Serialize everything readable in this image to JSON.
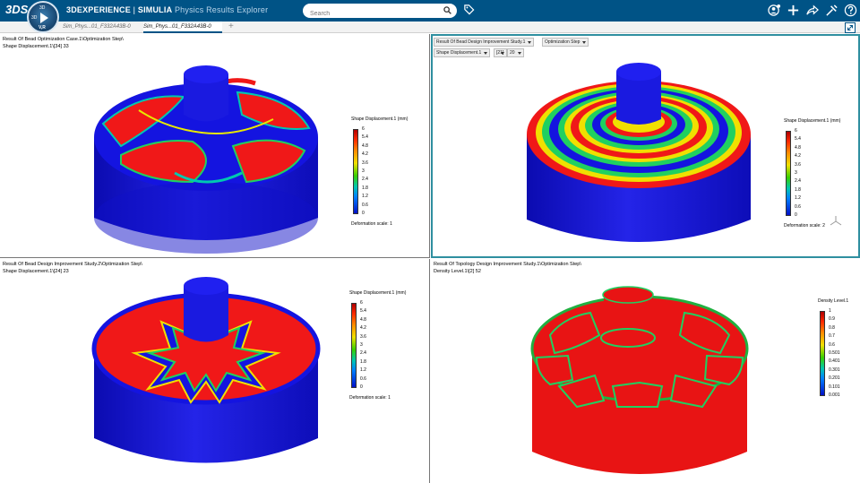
{
  "topbar": {
    "brand_mark": "3DS",
    "compass": {
      "q1": "3D",
      "q2": "3D",
      "version": "V,R"
    },
    "title_brand": "3DEXPERIENCE",
    "title_sep": " | ",
    "title_company": "SIMULIA",
    "title_app": "Physics Results Explorer",
    "search_placeholder": "Search",
    "icons": [
      "search-icon",
      "tag-icon",
      "user-icon",
      "plus-icon",
      "share-icon",
      "tools-icon",
      "help-icon"
    ]
  },
  "tabs": [
    {
      "label": "Sim_Phys...01_F332A43B-0",
      "active": false
    },
    {
      "label": "Sim_Phys...01_F332A43B-0",
      "active": true
    }
  ],
  "add_tab": "+",
  "viewports": {
    "top_left": {
      "title_line1": "Result Of Bead Optimization Case.1\\Optimization Step\\",
      "title_line2": "Shape Displacement.1\\[34]    33",
      "legend": {
        "title": "Shape Displacement.1 (mm)",
        "ticks": [
          "6",
          "5.4",
          "4.8",
          "4.2",
          "3.6",
          "3",
          "2.4",
          "1.8",
          "1.2",
          "0.6",
          "0"
        ],
        "deformation": "Deformation scale: 1"
      }
    },
    "top_right": {
      "combo1": "Result Of Bead Design Improvement Study.1",
      "combo2": "Optimization Step",
      "combo3": "Shape Displacement.1",
      "combo4": "[21]",
      "combo5": "20",
      "legend": {
        "title": "Shape Displacement.1 (mm)",
        "ticks": [
          "6",
          "5.4",
          "4.8",
          "4.2",
          "3.6",
          "3",
          "2.4",
          "1.8",
          "1.2",
          "0.6",
          "0"
        ],
        "deformation": "Deformation scale: 2"
      }
    },
    "bottom_left": {
      "title_line1": "Result Of Bead Design Improvement Study.2\\Optimization Step\\",
      "title_line2": "Shape Displacement.1\\[24]    23",
      "legend": {
        "title": "Shape Displacement.1 (mm)",
        "ticks": [
          "6",
          "5.4",
          "4.8",
          "4.2",
          "3.6",
          "3",
          "2.4",
          "1.8",
          "1.2",
          "0.6",
          "0"
        ],
        "deformation": "Deformation scale: 1"
      }
    },
    "bottom_right": {
      "title_line1": "Result Of Topology Design Improvement Study.1\\Optimization Step\\",
      "title_line2": "Density Level.1\\[2]    52",
      "legend": {
        "title": "Density Level.1",
        "ticks": [
          "1",
          "0.9",
          "0.8",
          "0.7",
          "0.6",
          "0.501",
          "0.401",
          "0.301",
          "0.201",
          "0.101",
          "0.001"
        ],
        "deformation": ""
      }
    }
  },
  "colors": {
    "header": "#005386",
    "active_border": "#2f8fa0",
    "model_blue": "#1616d8",
    "model_red": "#ee1010"
  }
}
